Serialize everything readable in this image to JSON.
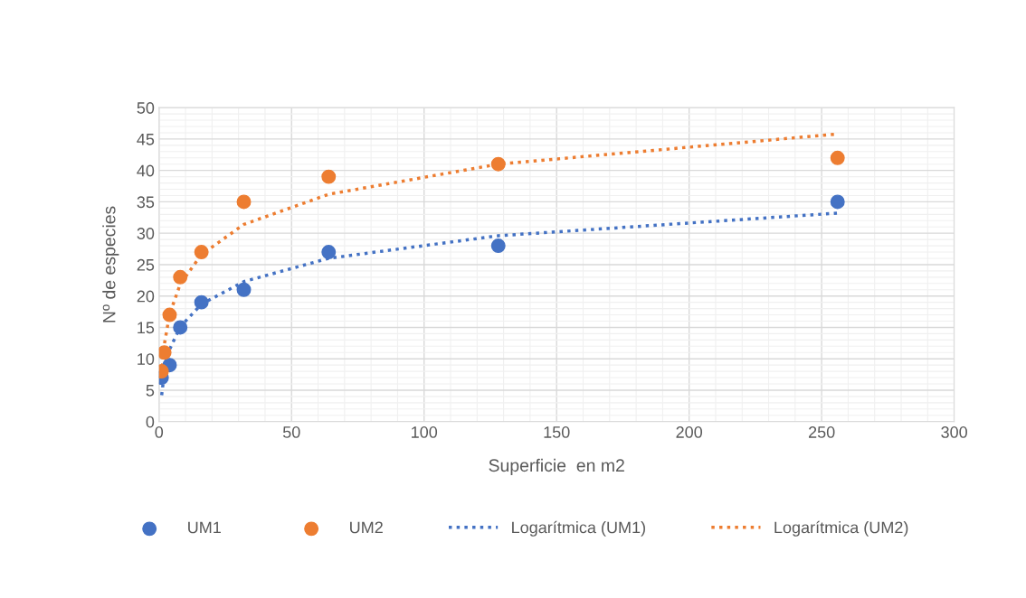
{
  "chart_data": {
    "type": "scatter",
    "xlabel": "Superficie  en m2",
    "ylabel": "Nº de especies",
    "x": [
      1,
      2,
      4,
      8,
      16,
      32,
      64,
      128,
      256
    ],
    "series": [
      {
        "name": "UM1",
        "type": "scatter",
        "color": "#4472c4",
        "marker": "circle",
        "values": [
          7,
          null,
          9,
          15,
          19,
          21,
          27,
          28,
          35
        ]
      },
      {
        "name": "UM2",
        "type": "scatter",
        "color": "#ed7d31",
        "marker": "circle",
        "values": [
          8,
          11,
          17,
          23,
          27,
          35,
          39,
          41,
          42
        ]
      },
      {
        "name": "Logarítmica (UM1)",
        "type": "line",
        "color": "#4472c4",
        "line_style": "dotted",
        "marker": "none",
        "x": [
          1,
          2,
          4,
          8,
          16,
          32,
          64,
          128,
          256
        ],
        "values": [
          4.2,
          7.8,
          11.5,
          15.1,
          18.7,
          22.3,
          26.0,
          29.6,
          33.2
        ]
      },
      {
        "name": "Logarítmica (UM2)",
        "type": "line",
        "color": "#ed7d31",
        "line_style": "dotted",
        "marker": "none",
        "x": [
          1,
          2,
          4,
          8,
          16,
          32,
          64,
          128,
          256
        ],
        "values": [
          7.5,
          12.3,
          17.1,
          21.9,
          26.6,
          31.4,
          36.2,
          41.0,
          45.8
        ]
      }
    ],
    "xlim": [
      0,
      300
    ],
    "xticks": [
      0,
      50,
      100,
      150,
      200,
      250,
      300
    ],
    "ylim": [
      0,
      50
    ],
    "yticks": [
      0,
      5,
      10,
      15,
      20,
      25,
      30,
      35,
      40,
      45,
      50
    ],
    "grid": true,
    "legend": "bottom"
  }
}
